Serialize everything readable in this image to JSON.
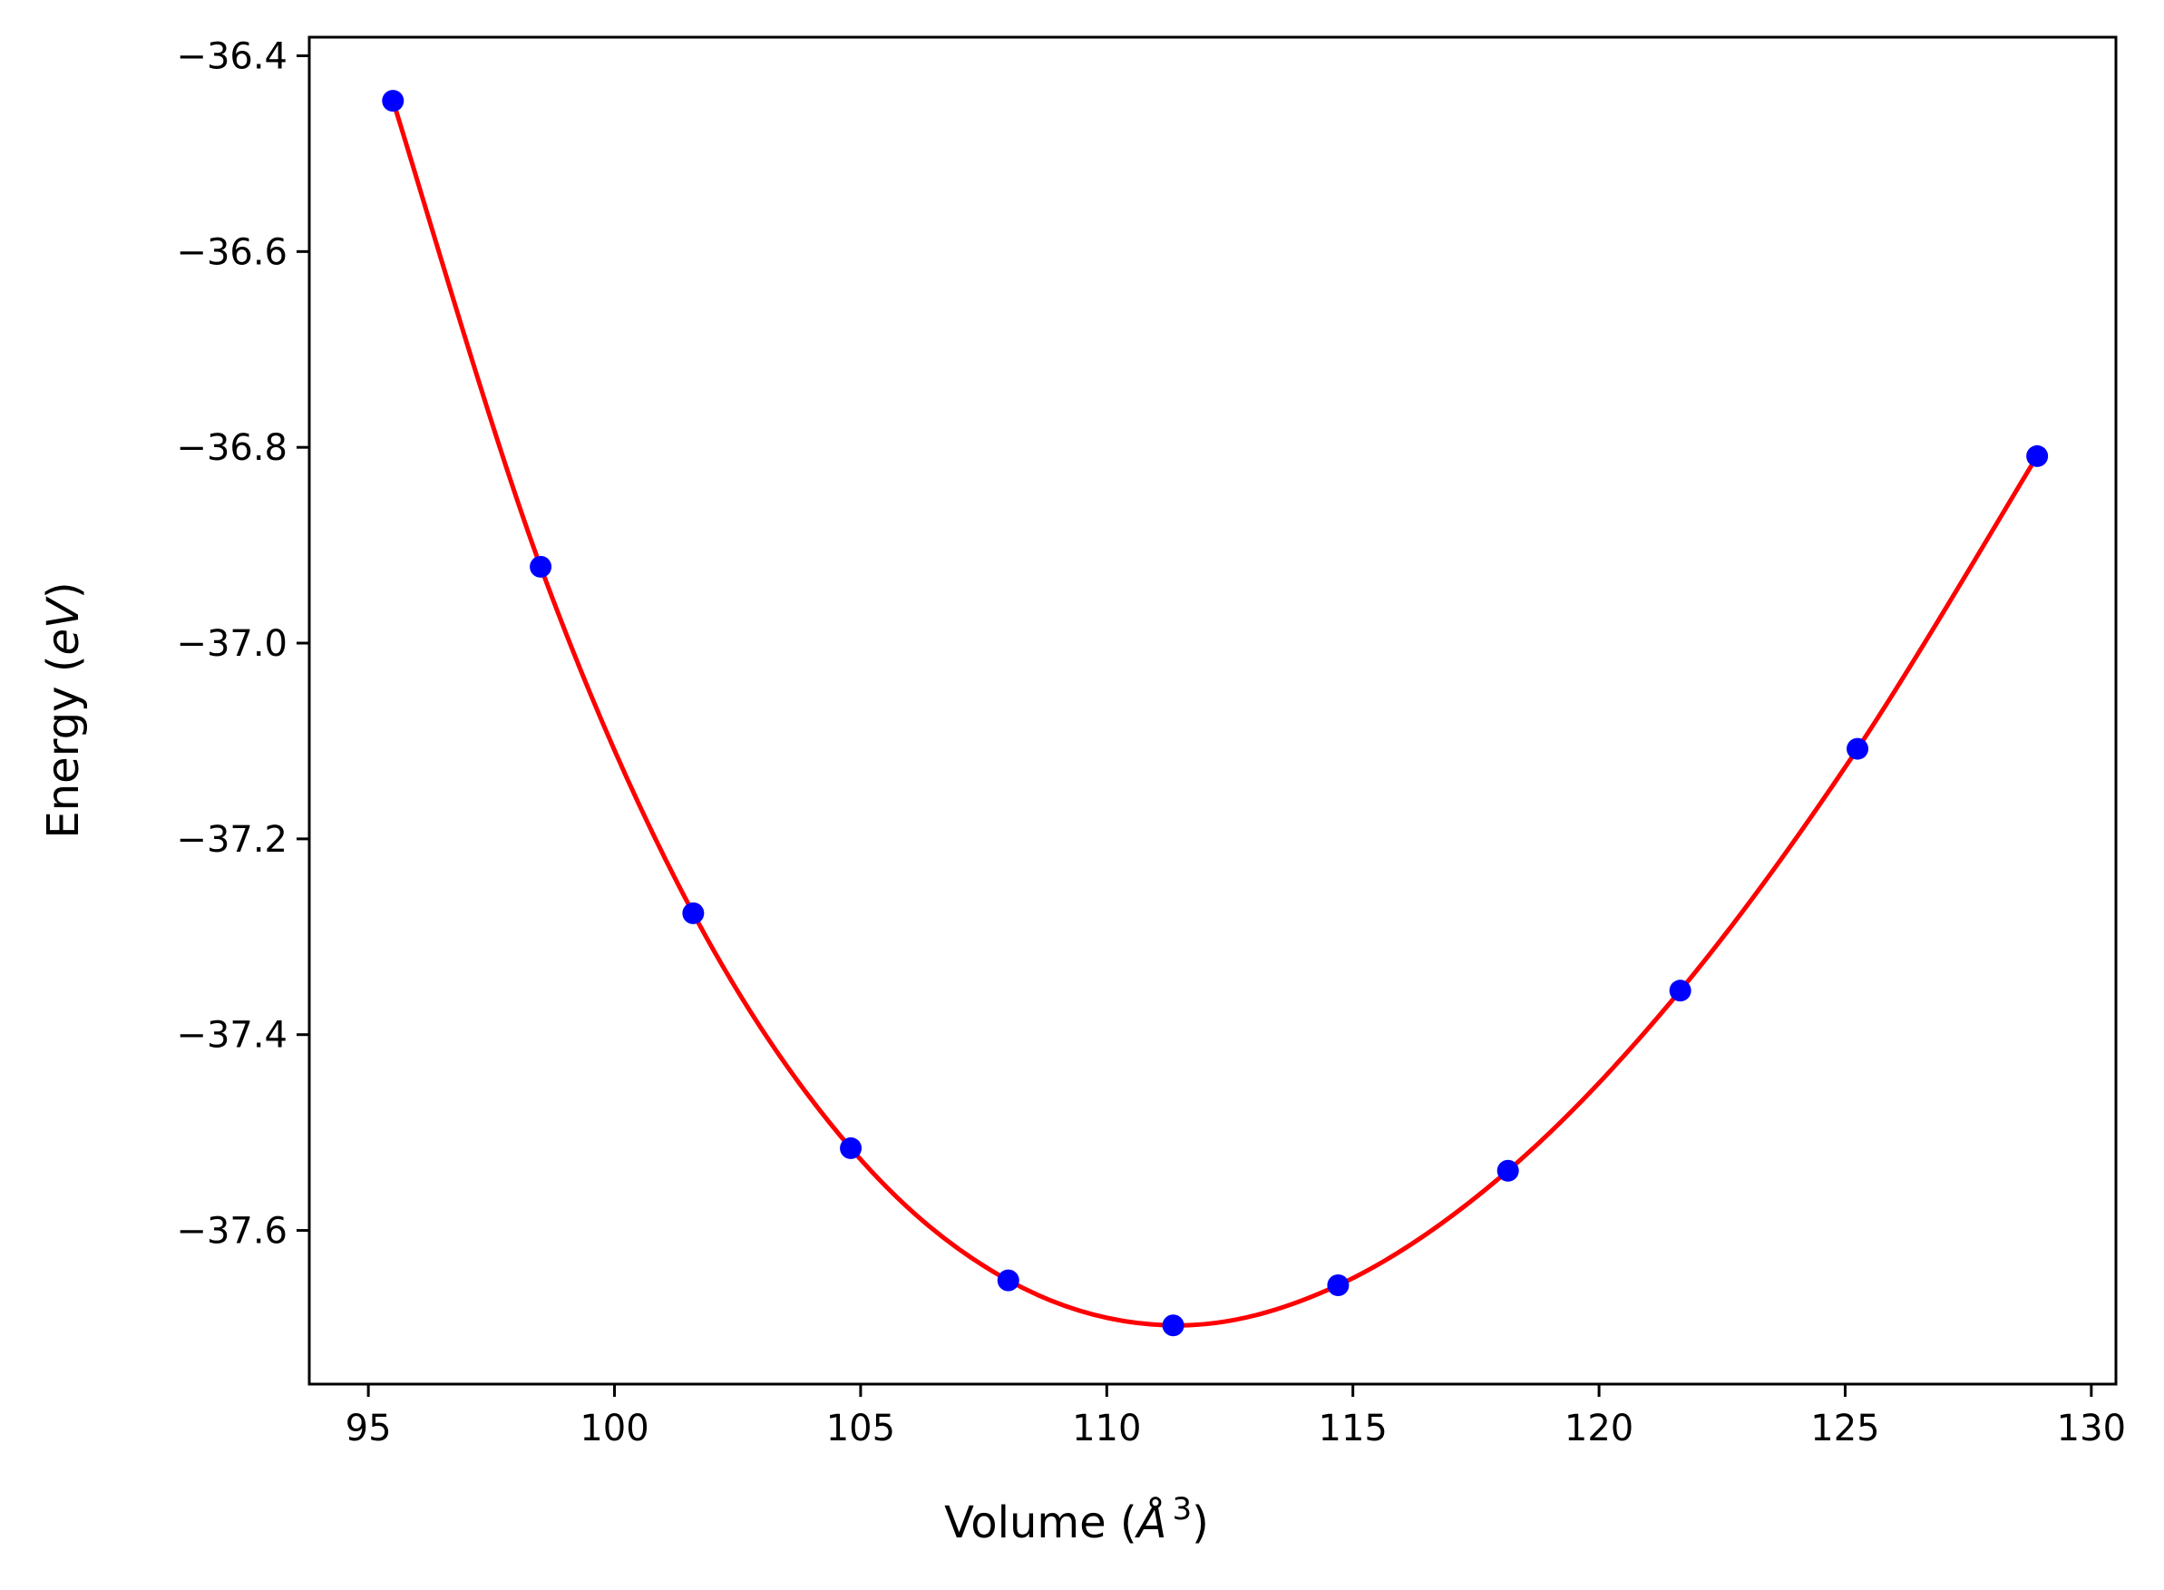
{
  "chart_data": {
    "type": "scatter",
    "title": "",
    "xlabel": "Volume (Å³)",
    "ylabel": "Energy (eV)",
    "xlabel_parts": {
      "prefix": "Volume (",
      "unit": "Å",
      "power": "3",
      "suffix": ")"
    },
    "ylabel_parts": {
      "prefix": "Energy (",
      "unit": "eV",
      "suffix": ")"
    },
    "xlim": [
      93.8,
      130.5
    ],
    "ylim": [
      -37.757,
      -36.381
    ],
    "xticks": [
      95,
      100,
      105,
      110,
      115,
      120,
      125,
      130
    ],
    "yticks": [
      -36.4,
      -36.6,
      -36.8,
      -37.0,
      -37.2,
      -37.4,
      -37.6
    ],
    "xtick_labels": [
      "95",
      "100",
      "105",
      "110",
      "115",
      "120",
      "125",
      "130"
    ],
    "ytick_labels": [
      "−36.4",
      "−36.6",
      "−36.8",
      "−37.0",
      "−37.2",
      "−37.4",
      "−37.6"
    ],
    "grid": false,
    "legend": "none",
    "series": [
      {
        "kind": "points",
        "color": "#0000ff",
        "x": [
          95.5,
          98.5,
          101.6,
          104.8,
          108.0,
          111.35,
          114.7,
          118.15,
          121.65,
          125.25,
          128.9
        ],
        "y": [
          -36.446,
          -36.922,
          -37.276,
          -37.516,
          -37.651,
          -37.697,
          -37.656,
          -37.539,
          -37.355,
          -37.108,
          -36.809
        ]
      },
      {
        "kind": "fit-curve",
        "color": "#ff0000",
        "x": [
          95.5,
          98.5,
          101.6,
          104.8,
          108.0,
          111.35,
          114.7,
          118.15,
          121.65,
          125.25,
          128.9
        ],
        "y": [
          -36.446,
          -36.922,
          -37.276,
          -37.516,
          -37.651,
          -37.697,
          -37.656,
          -37.539,
          -37.355,
          -37.108,
          -36.809
        ]
      }
    ]
  }
}
